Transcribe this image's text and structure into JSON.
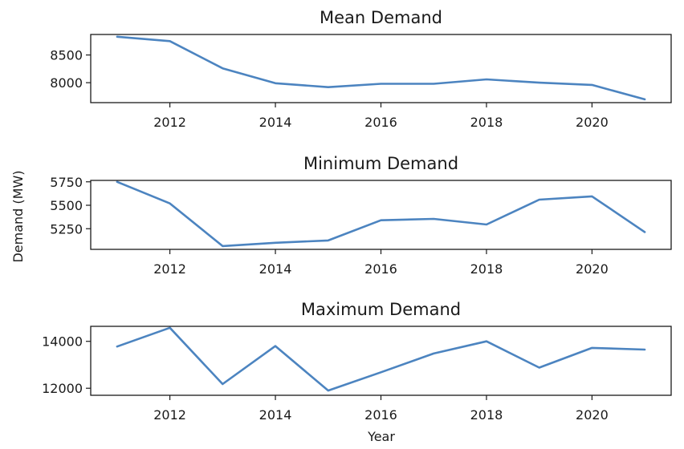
{
  "figure": {
    "ylabel": "Demand (MW)",
    "xlabel": "Year"
  },
  "chart_data": [
    {
      "type": "line",
      "title": "Mean Demand",
      "x": [
        2011,
        2012,
        2013,
        2014,
        2015,
        2016,
        2017,
        2018,
        2019,
        2020,
        2021
      ],
      "series": [
        {
          "values": [
            8830,
            8750,
            8260,
            7990,
            7920,
            7980,
            7980,
            8060,
            8000,
            7960,
            7700
          ]
        }
      ],
      "xticks": [
        2012,
        2014,
        2016,
        2018,
        2020
      ],
      "yticks": [
        8000,
        8500
      ],
      "xlim": [
        2010.5,
        2021.5
      ],
      "ylim": [
        7640,
        8870
      ],
      "color": "#4c84c0"
    },
    {
      "type": "line",
      "title": "Minimum Demand",
      "x": [
        2011,
        2012,
        2013,
        2014,
        2015,
        2016,
        2017,
        2018,
        2019,
        2020,
        2021
      ],
      "series": [
        {
          "values": [
            5750,
            5520,
            5065,
            5100,
            5125,
            5340,
            5355,
            5295,
            5560,
            5595,
            5215
          ]
        }
      ],
      "xticks": [
        2012,
        2014,
        2016,
        2018,
        2020
      ],
      "yticks": [
        5250,
        5500,
        5750
      ],
      "xlim": [
        2010.5,
        2021.5
      ],
      "ylim": [
        5030,
        5765
      ],
      "color": "#4c84c0"
    },
    {
      "type": "line",
      "title": "Maximum Demand",
      "x": [
        2011,
        2012,
        2013,
        2014,
        2015,
        2016,
        2017,
        2018,
        2019,
        2020,
        2021
      ],
      "series": [
        {
          "values": [
            13780,
            14580,
            12180,
            13800,
            11900,
            12680,
            13480,
            14000,
            12880,
            13720,
            13650
          ]
        }
      ],
      "xticks": [
        2012,
        2014,
        2016,
        2018,
        2020
      ],
      "yticks": [
        12000,
        14000
      ],
      "xlim": [
        2010.5,
        2021.5
      ],
      "ylim": [
        11700,
        14640
      ],
      "color": "#4c84c0"
    }
  ]
}
